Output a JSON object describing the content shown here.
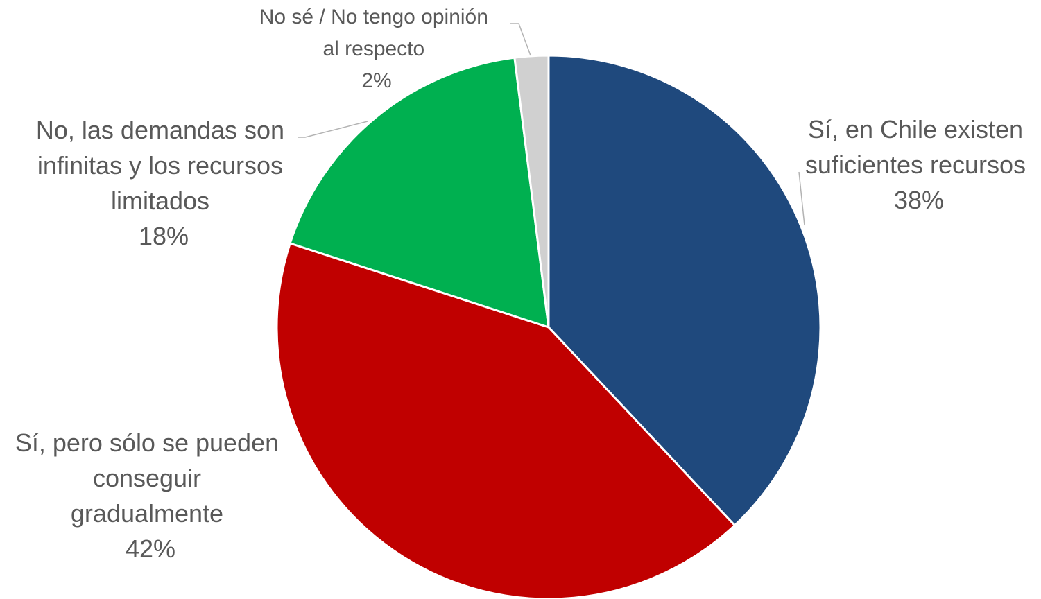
{
  "chart_data": {
    "type": "pie",
    "start_angle": "12 o'clock",
    "direction": "clockwise",
    "legend": "none",
    "slices": [
      {
        "label_lines": [
          "Sí, en Chile existen",
          "suficientes recursos"
        ],
        "value": 38,
        "value_label": "38%",
        "color": "#1f497d"
      },
      {
        "label_lines": [
          "Sí, pero sólo se pueden",
          "conseguir",
          "gradualmente"
        ],
        "value": 42,
        "value_label": "42%",
        "color": "#c00000"
      },
      {
        "label_lines": [
          "No, las demandas son",
          "infinitas y los recursos",
          "limitados"
        ],
        "value": 18,
        "value_label": "18%",
        "color": "#00b050"
      },
      {
        "label_lines": [
          "No sé / No tengo opinión",
          "al respecto"
        ],
        "value": 2,
        "value_label": "2%",
        "color": "#d0d0d0"
      }
    ]
  }
}
